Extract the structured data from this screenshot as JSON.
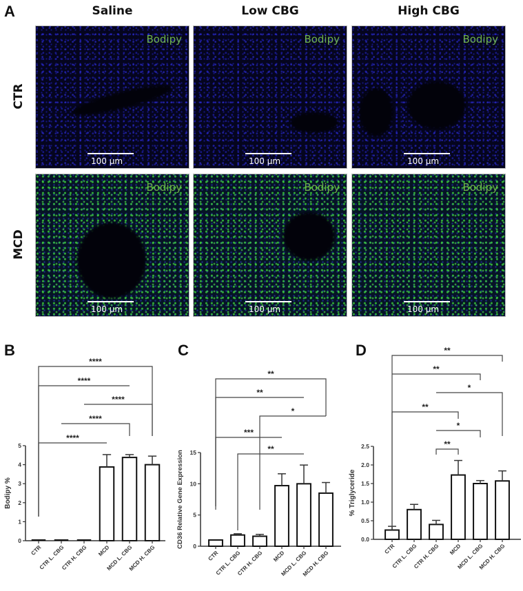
{
  "figure": {
    "panel_letters": {
      "a": "A",
      "b": "B",
      "c": "C",
      "d": "D"
    },
    "panel_a": {
      "column_titles": [
        "Saline",
        "Low CBG",
        "High CBG"
      ],
      "row_titles": [
        "CTR",
        "MCD"
      ],
      "stain_label": "Bodipy",
      "scale_bar": "100 µm",
      "colors": {
        "nuclei": "#2a2ae0",
        "lipid": "#4fd84f",
        "label": "#6fb34a"
      }
    }
  },
  "chart_data": [
    {
      "panel": "B",
      "type": "bar",
      "title": "",
      "xlabel": "",
      "ylabel": "Bodipy %",
      "categories": [
        "CTR",
        "CTR L. CBG",
        "CTR H. CBG",
        "MCD",
        "MCD L. CBG",
        "MCD H. CBG"
      ],
      "values": [
        0.0,
        0.02,
        0.02,
        3.88,
        4.38,
        4.0
      ],
      "errors": [
        0.0,
        0.0,
        0.0,
        0.65,
        0.15,
        0.45
      ],
      "ylim": [
        0,
        5
      ],
      "yticks": [
        0,
        1,
        2,
        3,
        4,
        5
      ],
      "grid": false,
      "significance": [
        {
          "from": 0,
          "to": 3,
          "label": "****"
        },
        {
          "from": 1,
          "to": 4,
          "label": "****"
        },
        {
          "from": 2,
          "to": 5,
          "label": "****"
        },
        {
          "from": 0,
          "to": 4,
          "label": "****"
        },
        {
          "from": 0,
          "to": 5,
          "label": "****"
        }
      ]
    },
    {
      "panel": "C",
      "type": "bar",
      "title": "",
      "xlabel": "",
      "ylabel": "CD36 Relative Gene Expression",
      "categories": [
        "CTR",
        "CTR L. CBG",
        "CTR H. CBG",
        "MCD",
        "MCD L. CBG",
        "MCD H. CBG"
      ],
      "values": [
        1.0,
        1.8,
        1.6,
        9.7,
        10.0,
        8.5
      ],
      "errors": [
        0.0,
        0.2,
        0.3,
        1.9,
        3.0,
        1.7
      ],
      "ylim": [
        0,
        15
      ],
      "yticks": [
        0,
        5,
        10,
        15
      ],
      "grid": false,
      "significance": [
        {
          "from": 1,
          "to": 4,
          "label": "**"
        },
        {
          "from": 0,
          "to": 3,
          "label": "***"
        },
        {
          "from": 2,
          "to": 5,
          "label": "*"
        },
        {
          "from": 0,
          "to": 4,
          "label": "**"
        },
        {
          "from": 0,
          "to": 5,
          "label": "**"
        }
      ]
    },
    {
      "panel": "D",
      "type": "bar",
      "title": "",
      "xlabel": "",
      "ylabel": "% Triglyceride",
      "categories": [
        "CTR",
        "CTR L. CBG",
        "CTR H. CBG",
        "MCD",
        "MCD L. CBG",
        "MCD H. CBG"
      ],
      "values": [
        0.25,
        0.8,
        0.4,
        1.73,
        1.5,
        1.57
      ],
      "errors": [
        0.1,
        0.14,
        0.11,
        0.39,
        0.08,
        0.27
      ],
      "ylim": [
        0,
        2.5
      ],
      "yticks": [
        "0.0",
        "0.5",
        "1.0",
        "1.5",
        "2.0",
        "2.5"
      ],
      "grid": false,
      "significance": [
        {
          "from": 2,
          "to": 3,
          "label": "**"
        },
        {
          "from": 2,
          "to": 4,
          "label": "*"
        },
        {
          "from": 0,
          "to": 3,
          "label": "**"
        },
        {
          "from": 2,
          "to": 5,
          "label": "*"
        },
        {
          "from": 0,
          "to": 4,
          "label": "**"
        },
        {
          "from": 0,
          "to": 5,
          "label": "**"
        }
      ]
    }
  ]
}
